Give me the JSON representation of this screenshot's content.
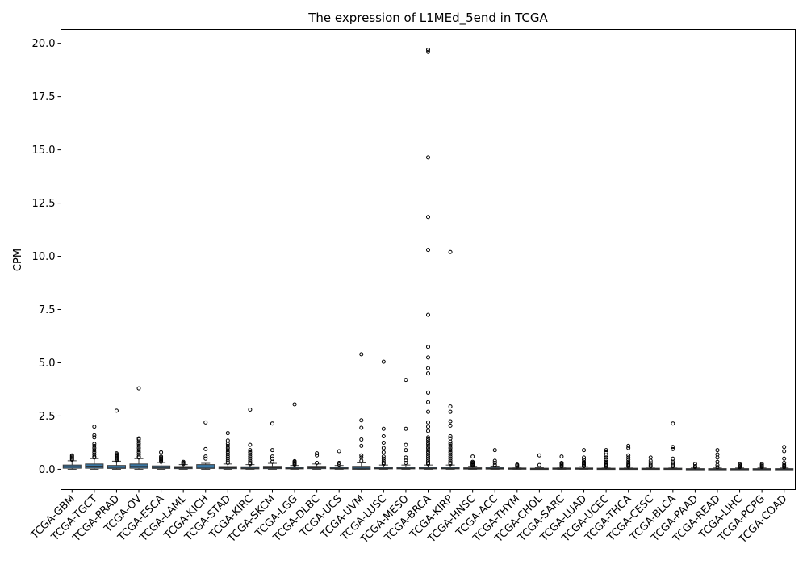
{
  "chart_data": {
    "type": "box",
    "title": "The expression of L1MEd_5end in TCGA",
    "xlabel": "",
    "ylabel": "CPM",
    "ylim": [
      -0.95,
      20.65
    ],
    "yticks": [
      0.0,
      2.5,
      5.0,
      7.5,
      10.0,
      12.5,
      15.0,
      17.5,
      20.0
    ],
    "ytick_labels": [
      "0.0",
      "2.5",
      "5.0",
      "7.5",
      "10.0",
      "12.5",
      "15.0",
      "17.5",
      "20.0"
    ],
    "grid": false,
    "box_color": "#3a78a6",
    "median_color": "#2a2a2a",
    "categories": [
      "TCGA-GBM",
      "TCGA-TGCT",
      "TCGA-PRAD",
      "TCGA-OV",
      "TCGA-ESCA",
      "TCGA-LAML",
      "TCGA-KICH",
      "TCGA-STAD",
      "TCGA-KIRC",
      "TCGA-SKCM",
      "TCGA-LGG",
      "TCGA-DLBC",
      "TCGA-UCS",
      "TCGA-UVM",
      "TCGA-LUSC",
      "TCGA-MESO",
      "TCGA-BRCA",
      "TCGA-KIRP",
      "TCGA-HNSC",
      "TCGA-ACC",
      "TCGA-THYM",
      "TCGA-CHOL",
      "TCGA-SARC",
      "TCGA-LUAD",
      "TCGA-UCEC",
      "TCGA-THCA",
      "TCGA-CESC",
      "TCGA-BLCA",
      "TCGA-PAAD",
      "TCGA-READ",
      "TCGA-LIHC",
      "TCGA-PCPG",
      "TCGA-COAD"
    ],
    "boxes": [
      {
        "q1": 0.05,
        "median": 0.12,
        "q3": 0.2,
        "whisker_low": 0.0,
        "whisker_high": 0.4,
        "outliers": [
          0.45,
          0.5,
          0.55,
          0.6,
          0.65
        ]
      },
      {
        "q1": 0.05,
        "median": 0.14,
        "q3": 0.25,
        "whisker_low": 0.0,
        "whisker_high": 0.5,
        "outliers": [
          0.55,
          0.6,
          0.7,
          0.8,
          0.9,
          1.0,
          1.1,
          1.2,
          1.5,
          1.6,
          2.0
        ]
      },
      {
        "q1": 0.04,
        "median": 0.1,
        "q3": 0.18,
        "whisker_low": 0.0,
        "whisker_high": 0.38,
        "outliers": [
          0.4,
          0.45,
          0.5,
          0.55,
          0.6,
          0.65,
          0.7,
          0.75,
          2.75
        ]
      },
      {
        "q1": 0.05,
        "median": 0.13,
        "q3": 0.25,
        "whisker_low": 0.0,
        "whisker_high": 0.5,
        "outliers": [
          0.55,
          0.6,
          0.7,
          0.8,
          0.9,
          1.0,
          1.1,
          1.2,
          1.3,
          1.4,
          1.45,
          3.8
        ]
      },
      {
        "q1": 0.04,
        "median": 0.09,
        "q3": 0.16,
        "whisker_low": 0.0,
        "whisker_high": 0.32,
        "outliers": [
          0.35,
          0.4,
          0.45,
          0.5,
          0.55,
          0.6,
          0.8
        ]
      },
      {
        "q1": 0.03,
        "median": 0.07,
        "q3": 0.13,
        "whisker_low": 0.0,
        "whisker_high": 0.22,
        "outliers": [
          0.25,
          0.3,
          0.35
        ]
      },
      {
        "q1": 0.04,
        "median": 0.1,
        "q3": 0.22,
        "whisker_low": 0.0,
        "whisker_high": 0.28,
        "outliers": [
          0.5,
          0.6,
          0.95,
          2.2
        ]
      },
      {
        "q1": 0.03,
        "median": 0.07,
        "q3": 0.13,
        "whisker_low": 0.0,
        "whisker_high": 0.25,
        "outliers": [
          0.3,
          0.4,
          0.5,
          0.6,
          0.7,
          0.8,
          0.9,
          1.0,
          1.1,
          1.2,
          1.35,
          1.7
        ]
      },
      {
        "q1": 0.02,
        "median": 0.06,
        "q3": 0.12,
        "whisker_low": 0.0,
        "whisker_high": 0.22,
        "outliers": [
          0.25,
          0.3,
          0.4,
          0.5,
          0.6,
          0.7,
          0.8,
          0.9,
          1.15,
          2.8
        ]
      },
      {
        "q1": 0.03,
        "median": 0.07,
        "q3": 0.14,
        "whisker_low": 0.0,
        "whisker_high": 0.28,
        "outliers": [
          0.35,
          0.5,
          0.6,
          0.9,
          2.15
        ]
      },
      {
        "q1": 0.02,
        "median": 0.05,
        "q3": 0.1,
        "whisker_low": 0.0,
        "whisker_high": 0.18,
        "outliers": [
          0.22,
          0.26,
          0.3,
          0.35,
          0.38,
          3.05
        ]
      },
      {
        "q1": 0.03,
        "median": 0.07,
        "q3": 0.14,
        "whisker_low": 0.0,
        "whisker_high": 0.25,
        "outliers": [
          0.3,
          0.65,
          0.75
        ]
      },
      {
        "q1": 0.02,
        "median": 0.05,
        "q3": 0.1,
        "whisker_low": 0.0,
        "whisker_high": 0.18,
        "outliers": [
          0.22,
          0.3,
          0.85
        ]
      },
      {
        "q1": 0.0,
        "median": 0.05,
        "q3": 0.14,
        "whisker_low": 0.0,
        "whisker_high": 0.3,
        "outliers": [
          0.4,
          0.55,
          0.65,
          1.1,
          1.4,
          1.95,
          2.3,
          5.4
        ]
      },
      {
        "q1": 0.02,
        "median": 0.05,
        "q3": 0.1,
        "whisker_low": 0.0,
        "whisker_high": 0.2,
        "outliers": [
          0.25,
          0.3,
          0.4,
          0.5,
          0.6,
          0.8,
          1.0,
          1.25,
          1.55,
          1.9,
          5.05
        ]
      },
      {
        "q1": 0.02,
        "median": 0.05,
        "q3": 0.1,
        "whisker_low": 0.0,
        "whisker_high": 0.2,
        "outliers": [
          0.3,
          0.4,
          0.55,
          0.9,
          1.15,
          1.9,
          4.2
        ]
      },
      {
        "q1": 0.02,
        "median": 0.05,
        "q3": 0.1,
        "whisker_low": 0.0,
        "whisker_high": 0.2,
        "outliers": [
          0.25,
          0.3,
          0.4,
          0.5,
          0.6,
          0.7,
          0.8,
          0.9,
          1.0,
          1.1,
          1.2,
          1.3,
          1.4,
          1.5,
          1.8,
          2.0,
          2.2,
          2.7,
          3.15,
          3.6,
          4.5,
          4.75,
          5.25,
          5.75,
          7.25,
          10.3,
          11.85,
          14.65,
          19.6,
          19.7
        ]
      },
      {
        "q1": 0.02,
        "median": 0.05,
        "q3": 0.1,
        "whisker_low": 0.0,
        "whisker_high": 0.2,
        "outliers": [
          0.25,
          0.3,
          0.4,
          0.5,
          0.6,
          0.7,
          0.8,
          0.9,
          1.0,
          1.1,
          1.2,
          1.3,
          1.45,
          1.55,
          2.05,
          2.25,
          2.7,
          2.95,
          10.2
        ]
      },
      {
        "q1": 0.01,
        "median": 0.03,
        "q3": 0.07,
        "whisker_low": 0.0,
        "whisker_high": 0.14,
        "outliers": [
          0.18,
          0.22,
          0.26,
          0.3,
          0.35,
          0.6
        ]
      },
      {
        "q1": 0.01,
        "median": 0.03,
        "q3": 0.08,
        "whisker_low": 0.0,
        "whisker_high": 0.15,
        "outliers": [
          0.2,
          0.3,
          0.4,
          0.9
        ]
      },
      {
        "q1": 0.01,
        "median": 0.03,
        "q3": 0.06,
        "whisker_low": 0.0,
        "whisker_high": 0.1,
        "outliers": [
          0.13,
          0.18,
          0.22
        ]
      },
      {
        "q1": 0.01,
        "median": 0.02,
        "q3": 0.05,
        "whisker_low": 0.0,
        "whisker_high": 0.08,
        "outliers": [
          0.2,
          0.65
        ]
      },
      {
        "q1": 0.01,
        "median": 0.03,
        "q3": 0.06,
        "whisker_low": 0.0,
        "whisker_high": 0.1,
        "outliers": [
          0.14,
          0.2,
          0.25,
          0.3,
          0.6
        ]
      },
      {
        "q1": 0.01,
        "median": 0.03,
        "q3": 0.06,
        "whisker_low": 0.0,
        "whisker_high": 0.12,
        "outliers": [
          0.15,
          0.2,
          0.25,
          0.3,
          0.35,
          0.45,
          0.55,
          0.9
        ]
      },
      {
        "q1": 0.0,
        "median": 0.02,
        "q3": 0.05,
        "whisker_low": 0.0,
        "whisker_high": 0.1,
        "outliers": [
          0.13,
          0.18,
          0.22,
          0.28,
          0.35,
          0.45,
          0.55,
          0.65,
          0.8,
          0.9
        ]
      },
      {
        "q1": 0.0,
        "median": 0.02,
        "q3": 0.05,
        "whisker_low": 0.0,
        "whisker_high": 0.1,
        "outliers": [
          0.13,
          0.18,
          0.22,
          0.28,
          0.35,
          0.45,
          0.55,
          0.65,
          1.0,
          1.1
        ]
      },
      {
        "q1": 0.0,
        "median": 0.02,
        "q3": 0.05,
        "whisker_low": 0.0,
        "whisker_high": 0.1,
        "outliers": [
          0.14,
          0.2,
          0.28,
          0.4,
          0.55
        ]
      },
      {
        "q1": 0.0,
        "median": 0.02,
        "q3": 0.05,
        "whisker_low": 0.0,
        "whisker_high": 0.1,
        "outliers": [
          0.14,
          0.2,
          0.28,
          0.35,
          0.5,
          0.95,
          1.05,
          2.15
        ]
      },
      {
        "q1": 0.0,
        "median": 0.01,
        "q3": 0.03,
        "whisker_low": 0.0,
        "whisker_high": 0.06,
        "outliers": [
          0.1,
          0.15,
          0.25
        ]
      },
      {
        "q1": 0.0,
        "median": 0.01,
        "q3": 0.03,
        "whisker_low": 0.0,
        "whisker_high": 0.06,
        "outliers": [
          0.1,
          0.2,
          0.35,
          0.55,
          0.7,
          0.9
        ]
      },
      {
        "q1": 0.0,
        "median": 0.01,
        "q3": 0.03,
        "whisker_low": 0.0,
        "whisker_high": 0.06,
        "outliers": [
          0.1,
          0.15,
          0.2,
          0.25
        ]
      },
      {
        "q1": 0.0,
        "median": 0.01,
        "q3": 0.03,
        "whisker_low": 0.0,
        "whisker_high": 0.06,
        "outliers": [
          0.1,
          0.15,
          0.2,
          0.25
        ]
      },
      {
        "q1": 0.0,
        "median": 0.01,
        "q3": 0.03,
        "whisker_low": 0.0,
        "whisker_high": 0.06,
        "outliers": [
          0.1,
          0.15,
          0.2,
          0.3,
          0.5,
          0.85,
          1.05
        ]
      }
    ]
  }
}
